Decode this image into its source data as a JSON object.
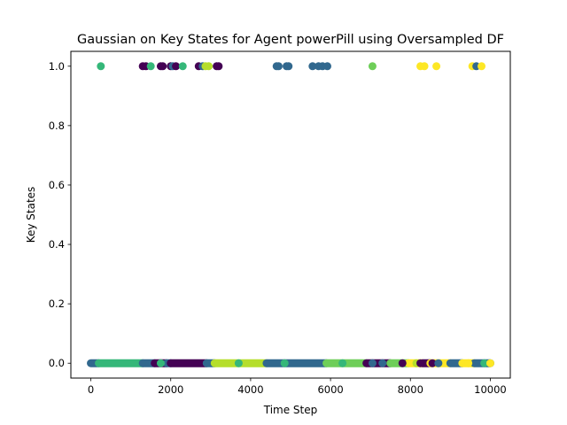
{
  "chart_data": {
    "type": "scatter",
    "title": "Gaussian on Key States for Agent powerPill using Oversampled DF",
    "xlabel": "Time Step",
    "ylabel": "Key States",
    "xlim": [
      -500,
      10500
    ],
    "ylim": [
      -0.05,
      1.05
    ],
    "x_ticks": [
      0,
      2000,
      4000,
      6000,
      8000,
      10000
    ],
    "y_ticks": [
      0.0,
      0.2,
      0.4,
      0.6,
      0.8,
      1.0
    ],
    "x_tick_labels": [
      "0",
      "2000",
      "4000",
      "6000",
      "8000",
      "10000"
    ],
    "y_tick_labels": [
      "0.0",
      "0.2",
      "0.4",
      "0.6",
      "0.8",
      "1.0"
    ],
    "grid": false,
    "legend": "none",
    "colormap": "viridis",
    "palette": {
      "dark_purple": "#440154",
      "slate_blue": "#31688e",
      "green": "#35b779",
      "light_green": "#6ece58",
      "lime": "#b5de2b",
      "yellow": "#fde725"
    },
    "points_high": [
      {
        "x": 250,
        "y": 1,
        "color": "green"
      },
      {
        "x": 1300,
        "y": 1,
        "color": "dark_purple"
      },
      {
        "x": 1380,
        "y": 1,
        "color": "dark_purple"
      },
      {
        "x": 1500,
        "y": 1,
        "color": "green"
      },
      {
        "x": 1750,
        "y": 1,
        "color": "dark_purple"
      },
      {
        "x": 1800,
        "y": 1,
        "color": "dark_purple"
      },
      {
        "x": 2000,
        "y": 1,
        "color": "dark_purple"
      },
      {
        "x": 2050,
        "y": 1,
        "color": "slate_blue"
      },
      {
        "x": 2130,
        "y": 1,
        "color": "dark_purple"
      },
      {
        "x": 2300,
        "y": 1,
        "color": "green"
      },
      {
        "x": 2700,
        "y": 1,
        "color": "dark_purple"
      },
      {
        "x": 2800,
        "y": 1,
        "color": "slate_blue"
      },
      {
        "x": 2870,
        "y": 1,
        "color": "lime"
      },
      {
        "x": 2950,
        "y": 1,
        "color": "lime"
      },
      {
        "x": 3150,
        "y": 1,
        "color": "dark_purple"
      },
      {
        "x": 3200,
        "y": 1,
        "color": "dark_purple"
      },
      {
        "x": 4650,
        "y": 1,
        "color": "slate_blue"
      },
      {
        "x": 4700,
        "y": 1,
        "color": "slate_blue"
      },
      {
        "x": 4900,
        "y": 1,
        "color": "slate_blue"
      },
      {
        "x": 4950,
        "y": 1,
        "color": "slate_blue"
      },
      {
        "x": 5550,
        "y": 1,
        "color": "slate_blue"
      },
      {
        "x": 5700,
        "y": 1,
        "color": "slate_blue"
      },
      {
        "x": 5800,
        "y": 1,
        "color": "slate_blue"
      },
      {
        "x": 5920,
        "y": 1,
        "color": "slate_blue"
      },
      {
        "x": 7050,
        "y": 1,
        "color": "light_green"
      },
      {
        "x": 8250,
        "y": 1,
        "color": "yellow"
      },
      {
        "x": 8350,
        "y": 1,
        "color": "yellow"
      },
      {
        "x": 8650,
        "y": 1,
        "color": "yellow"
      },
      {
        "x": 9550,
        "y": 1,
        "color": "yellow"
      },
      {
        "x": 9650,
        "y": 1,
        "color": "slate_blue"
      },
      {
        "x": 9780,
        "y": 1,
        "color": "yellow"
      }
    ],
    "segments_low": [
      {
        "x_start": 0,
        "x_end": 200,
        "y": 0,
        "color": "slate_blue"
      },
      {
        "x_start": 200,
        "x_end": 1300,
        "y": 0,
        "color": "green"
      },
      {
        "x_start": 1300,
        "x_end": 1600,
        "y": 0,
        "color": "slate_blue"
      },
      {
        "x_start": 1600,
        "x_end": 1900,
        "y": 0,
        "color": "dark_purple"
      },
      {
        "x_start": 1900,
        "x_end": 2000,
        "y": 0,
        "color": "slate_blue"
      },
      {
        "x_start": 2000,
        "x_end": 2900,
        "y": 0,
        "color": "dark_purple"
      },
      {
        "x_start": 2900,
        "x_end": 3100,
        "y": 0,
        "color": "slate_blue"
      },
      {
        "x_start": 3100,
        "x_end": 4400,
        "y": 0,
        "color": "lime"
      },
      {
        "x_start": 4400,
        "x_end": 5900,
        "y": 0,
        "color": "slate_blue"
      },
      {
        "x_start": 5900,
        "x_end": 6900,
        "y": 0,
        "color": "light_green"
      },
      {
        "x_start": 6900,
        "x_end": 7500,
        "y": 0,
        "color": "dark_purple"
      },
      {
        "x_start": 7500,
        "x_end": 7950,
        "y": 0,
        "color": "light_green"
      },
      {
        "x_start": 7950,
        "x_end": 8300,
        "y": 0,
        "color": "yellow"
      },
      {
        "x_start": 8300,
        "x_end": 8500,
        "y": 0,
        "color": "dark_purple"
      },
      {
        "x_start": 8500,
        "x_end": 9000,
        "y": 0,
        "color": "yellow"
      },
      {
        "x_start": 9000,
        "x_end": 9300,
        "y": 0,
        "color": "slate_blue"
      },
      {
        "x_start": 9300,
        "x_end": 9600,
        "y": 0,
        "color": "yellow"
      },
      {
        "x_start": 9600,
        "x_end": 10000,
        "y": 0,
        "color": "slate_blue"
      }
    ],
    "points_low_accents": [
      {
        "x": 1750,
        "y": 0,
        "color": "green"
      },
      {
        "x": 3700,
        "y": 0,
        "color": "green"
      },
      {
        "x": 4850,
        "y": 0,
        "color": "green"
      },
      {
        "x": 6300,
        "y": 0,
        "color": "green"
      },
      {
        "x": 7050,
        "y": 0,
        "color": "slate_blue"
      },
      {
        "x": 7300,
        "y": 0,
        "color": "slate_blue"
      },
      {
        "x": 7800,
        "y": 0,
        "color": "dark_purple"
      },
      {
        "x": 8150,
        "y": 0,
        "color": "lime"
      },
      {
        "x": 8250,
        "y": 0,
        "color": "dark_purple"
      },
      {
        "x": 8550,
        "y": 0,
        "color": "dark_purple"
      },
      {
        "x": 8700,
        "y": 0,
        "color": "slate_blue"
      },
      {
        "x": 9450,
        "y": 0,
        "color": "yellow"
      },
      {
        "x": 9850,
        "y": 0,
        "color": "green"
      },
      {
        "x": 10000,
        "y": 0,
        "color": "yellow"
      }
    ]
  }
}
